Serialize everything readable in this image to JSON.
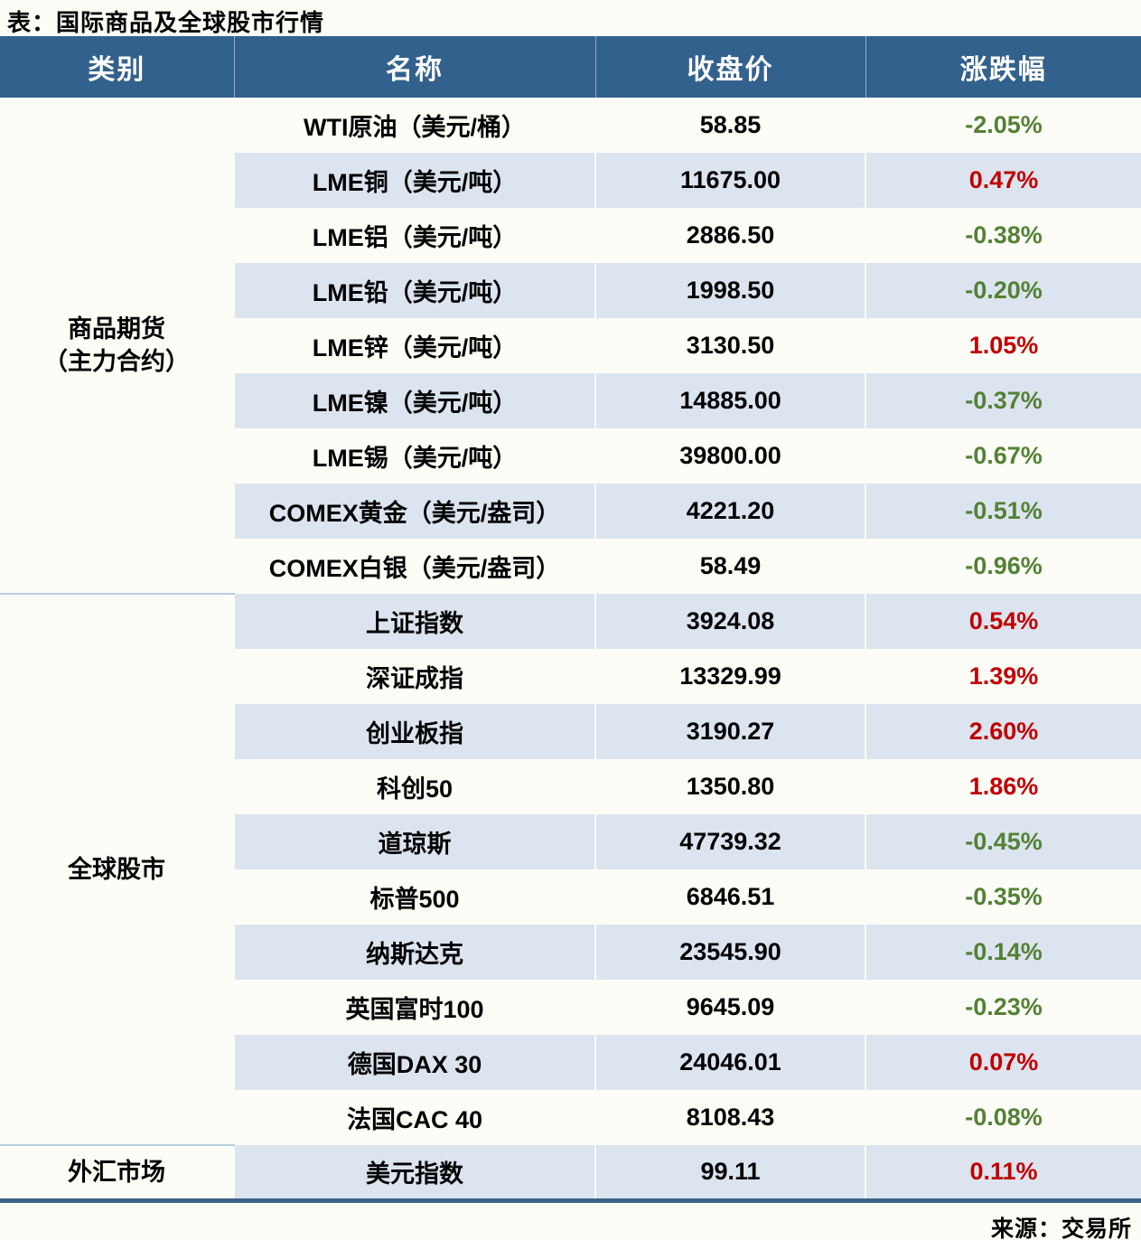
{
  "title": "表：国际商品及全球股市行情",
  "source": "来源：交易所",
  "columns": [
    "类别",
    "名称",
    "收盘价",
    "涨跌幅"
  ],
  "colors": {
    "header_bg": "#33618E",
    "header_text": "#FFFFFF",
    "row_light": "#FDFDF7",
    "row_dark": "#DCE4EF",
    "positive_change": "#C00000",
    "negative_change": "#538135",
    "bottom_border": "#3D6388",
    "section_divider": "#B8CCE0"
  },
  "sections": [
    {
      "category_lines": [
        "商品期货",
        "（主力合约）"
      ],
      "rows": [
        {
          "name": "WTI原油（美元/桶）",
          "close": "58.85",
          "change": "-2.05%"
        },
        {
          "name": "LME铜（美元/吨）",
          "close": "11675.00",
          "change": "0.47%"
        },
        {
          "name": "LME铝（美元/吨）",
          "close": "2886.50",
          "change": "-0.38%"
        },
        {
          "name": "LME铅（美元/吨）",
          "close": "1998.50",
          "change": "-0.20%"
        },
        {
          "name": "LME锌（美元/吨）",
          "close": "3130.50",
          "change": "1.05%"
        },
        {
          "name": "LME镍（美元/吨）",
          "close": "14885.00",
          "change": "-0.37%"
        },
        {
          "name": "LME锡（美元/吨）",
          "close": "39800.00",
          "change": "-0.67%"
        },
        {
          "name": "COMEX黄金（美元/盎司）",
          "close": "4221.20",
          "change": "-0.51%"
        },
        {
          "name": "COMEX白银（美元/盎司）",
          "close": "58.49",
          "change": "-0.96%"
        }
      ]
    },
    {
      "category_lines": [
        "全球股市"
      ],
      "rows": [
        {
          "name": "上证指数",
          "close": "3924.08",
          "change": "0.54%"
        },
        {
          "name": "深证成指",
          "close": "13329.99",
          "change": "1.39%"
        },
        {
          "name": "创业板指",
          "close": "3190.27",
          "change": "2.60%"
        },
        {
          "name": "科创50",
          "close": "1350.80",
          "change": "1.86%"
        },
        {
          "name": "道琼斯",
          "close": "47739.32",
          "change": "-0.45%"
        },
        {
          "name": "标普500",
          "close": "6846.51",
          "change": "-0.35%"
        },
        {
          "name": "纳斯达克",
          "close": "23545.90",
          "change": "-0.14%"
        },
        {
          "name": "英国富时100",
          "close": "9645.09",
          "change": "-0.23%"
        },
        {
          "name": "德国DAX 30",
          "close": "24046.01",
          "change": "0.07%"
        },
        {
          "name": "法国CAC 40",
          "close": "8108.43",
          "change": "-0.08%"
        }
      ]
    },
    {
      "category_lines": [
        "外汇市场"
      ],
      "rows": [
        {
          "name": "美元指数",
          "close": "99.11",
          "change": "0.11%"
        }
      ]
    }
  ],
  "chart_data": {
    "type": "table",
    "title": "表：国际商品及全球股市行情",
    "columns": [
      "类别",
      "名称",
      "收盘价",
      "涨跌幅"
    ],
    "rows": [
      [
        "商品期货（主力合约）",
        "WTI原油（美元/桶）",
        58.85,
        "-2.05%"
      ],
      [
        "商品期货（主力合约）",
        "LME铜（美元/吨）",
        11675.0,
        "0.47%"
      ],
      [
        "商品期货（主力合约）",
        "LME铝（美元/吨）",
        2886.5,
        "-0.38%"
      ],
      [
        "商品期货（主力合约）",
        "LME铅（美元/吨）",
        1998.5,
        "-0.20%"
      ],
      [
        "商品期货（主力合约）",
        "LME锌（美元/吨）",
        3130.5,
        "1.05%"
      ],
      [
        "商品期货（主力合约）",
        "LME镍（美元/吨）",
        14885.0,
        "-0.37%"
      ],
      [
        "商品期货（主力合约）",
        "LME锡（美元/吨）",
        39800.0,
        "-0.67%"
      ],
      [
        "商品期货（主力合约）",
        "COMEX黄金（美元/盎司）",
        4221.2,
        "-0.51%"
      ],
      [
        "商品期货（主力合约）",
        "COMEX白银（美元/盎司）",
        58.49,
        "-0.96%"
      ],
      [
        "全球股市",
        "上证指数",
        3924.08,
        "0.54%"
      ],
      [
        "全球股市",
        "深证成指",
        13329.99,
        "1.39%"
      ],
      [
        "全球股市",
        "创业板指",
        3190.27,
        "2.60%"
      ],
      [
        "全球股市",
        "科创50",
        1350.8,
        "1.86%"
      ],
      [
        "全球股市",
        "道琼斯",
        47739.32,
        "-0.45%"
      ],
      [
        "全球股市",
        "标普500",
        6846.51,
        "-0.35%"
      ],
      [
        "全球股市",
        "纳斯达克",
        23545.9,
        "-0.14%"
      ],
      [
        "全球股市",
        "英国富时100",
        9645.09,
        "-0.23%"
      ],
      [
        "全球股市",
        "德国DAX 30",
        24046.01,
        "0.07%"
      ],
      [
        "全球股市",
        "法国CAC 40",
        8108.43,
        "-0.08%"
      ],
      [
        "外汇市场",
        "美元指数",
        99.11,
        "0.11%"
      ]
    ],
    "notes": "负值涨跌幅为绿色，正值为红色；来源：交易所"
  }
}
